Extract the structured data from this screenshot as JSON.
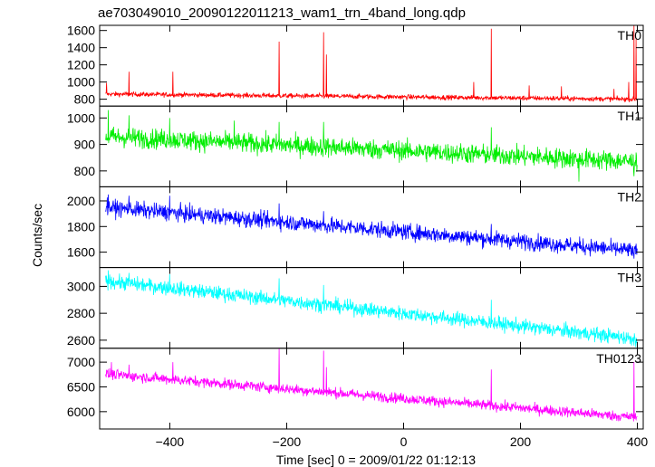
{
  "chart_data": {
    "type": "line",
    "title": "ae703049010_20090122011213_wam1_trn_4band_long.qdp",
    "xlabel": "Time [sec] 0 = 2009/01/22 01:12:13",
    "ylabel": "Counts/sec",
    "xlim": [
      -520,
      410
    ],
    "xticks": [
      -400,
      -200,
      0,
      200,
      400
    ],
    "grid": false,
    "panels": [
      {
        "name": "TH0",
        "color": "#ff0000",
        "ylim": [
          720,
          1660
        ],
        "yticks": [
          800,
          1000,
          1200,
          1400,
          1600
        ],
        "trend": [
          [
            -510,
            860
          ],
          [
            400,
            800
          ]
        ],
        "noise": 20,
        "spikes": [
          [
            -508,
            990
          ],
          [
            -470,
            1120
          ],
          [
            -395,
            1120
          ],
          [
            -213,
            1470
          ],
          [
            -137,
            1580
          ],
          [
            -132,
            1320
          ],
          [
            120,
            1000
          ],
          [
            150,
            1620
          ],
          [
            215,
            960
          ],
          [
            270,
            950
          ],
          [
            360,
            920
          ],
          [
            385,
            1000
          ],
          [
            394,
            1660
          ],
          [
            398,
            1500
          ]
        ]
      },
      {
        "name": "TH1",
        "color": "#00ee00",
        "ylim": [
          740,
          1045
        ],
        "yticks": [
          800,
          900,
          1000
        ],
        "trend": [
          [
            -510,
            930
          ],
          [
            400,
            835
          ]
        ],
        "noise": 27,
        "spikes": [
          [
            -505,
            1030
          ],
          [
            -470,
            1010
          ],
          [
            -400,
            1000
          ],
          [
            -290,
            990
          ],
          [
            -213,
            985
          ],
          [
            -137,
            985
          ],
          [
            150,
            965
          ],
          [
            300,
            760
          ],
          [
            394,
            780
          ]
        ]
      },
      {
        "name": "TH2",
        "color": "#0000ff",
        "ylim": [
          1480,
          2110
        ],
        "yticks": [
          1600,
          1800,
          2000
        ],
        "trend": [
          [
            -510,
            1950
          ],
          [
            400,
            1610
          ]
        ],
        "noise": 45,
        "spikes": [
          [
            -505,
            2050
          ],
          [
            -470,
            2040
          ],
          [
            -400,
            2040
          ],
          [
            -213,
            1980
          ],
          [
            -137,
            1920
          ],
          [
            150,
            1820
          ],
          [
            394,
            1550
          ]
        ]
      },
      {
        "name": "TH3",
        "color": "#00ffff",
        "ylim": [
          2540,
          3140
        ],
        "yticks": [
          2600,
          2800,
          3000
        ],
        "trend": [
          [
            -510,
            3040
          ],
          [
            400,
            2610
          ]
        ],
        "noise": 38,
        "spikes": [
          [
            -505,
            3120
          ],
          [
            -470,
            3100
          ],
          [
            -400,
            3090
          ],
          [
            -213,
            3060
          ],
          [
            -137,
            3010
          ],
          [
            150,
            2900
          ],
          [
            394,
            2560
          ]
        ]
      },
      {
        "name": "TH0123",
        "color": "#ff00ff",
        "ylim": [
          5650,
          7280
        ],
        "yticks": [
          6000,
          6500,
          7000
        ],
        "trend": [
          [
            -510,
            6760
          ],
          [
            400,
            5880
          ]
        ],
        "noise": 75,
        "spikes": [
          [
            -500,
            7000
          ],
          [
            -470,
            6950
          ],
          [
            -395,
            7000
          ],
          [
            -213,
            7270
          ],
          [
            -137,
            7230
          ],
          [
            -132,
            6900
          ],
          [
            150,
            6850
          ],
          [
            394,
            7000
          ]
        ]
      }
    ]
  }
}
